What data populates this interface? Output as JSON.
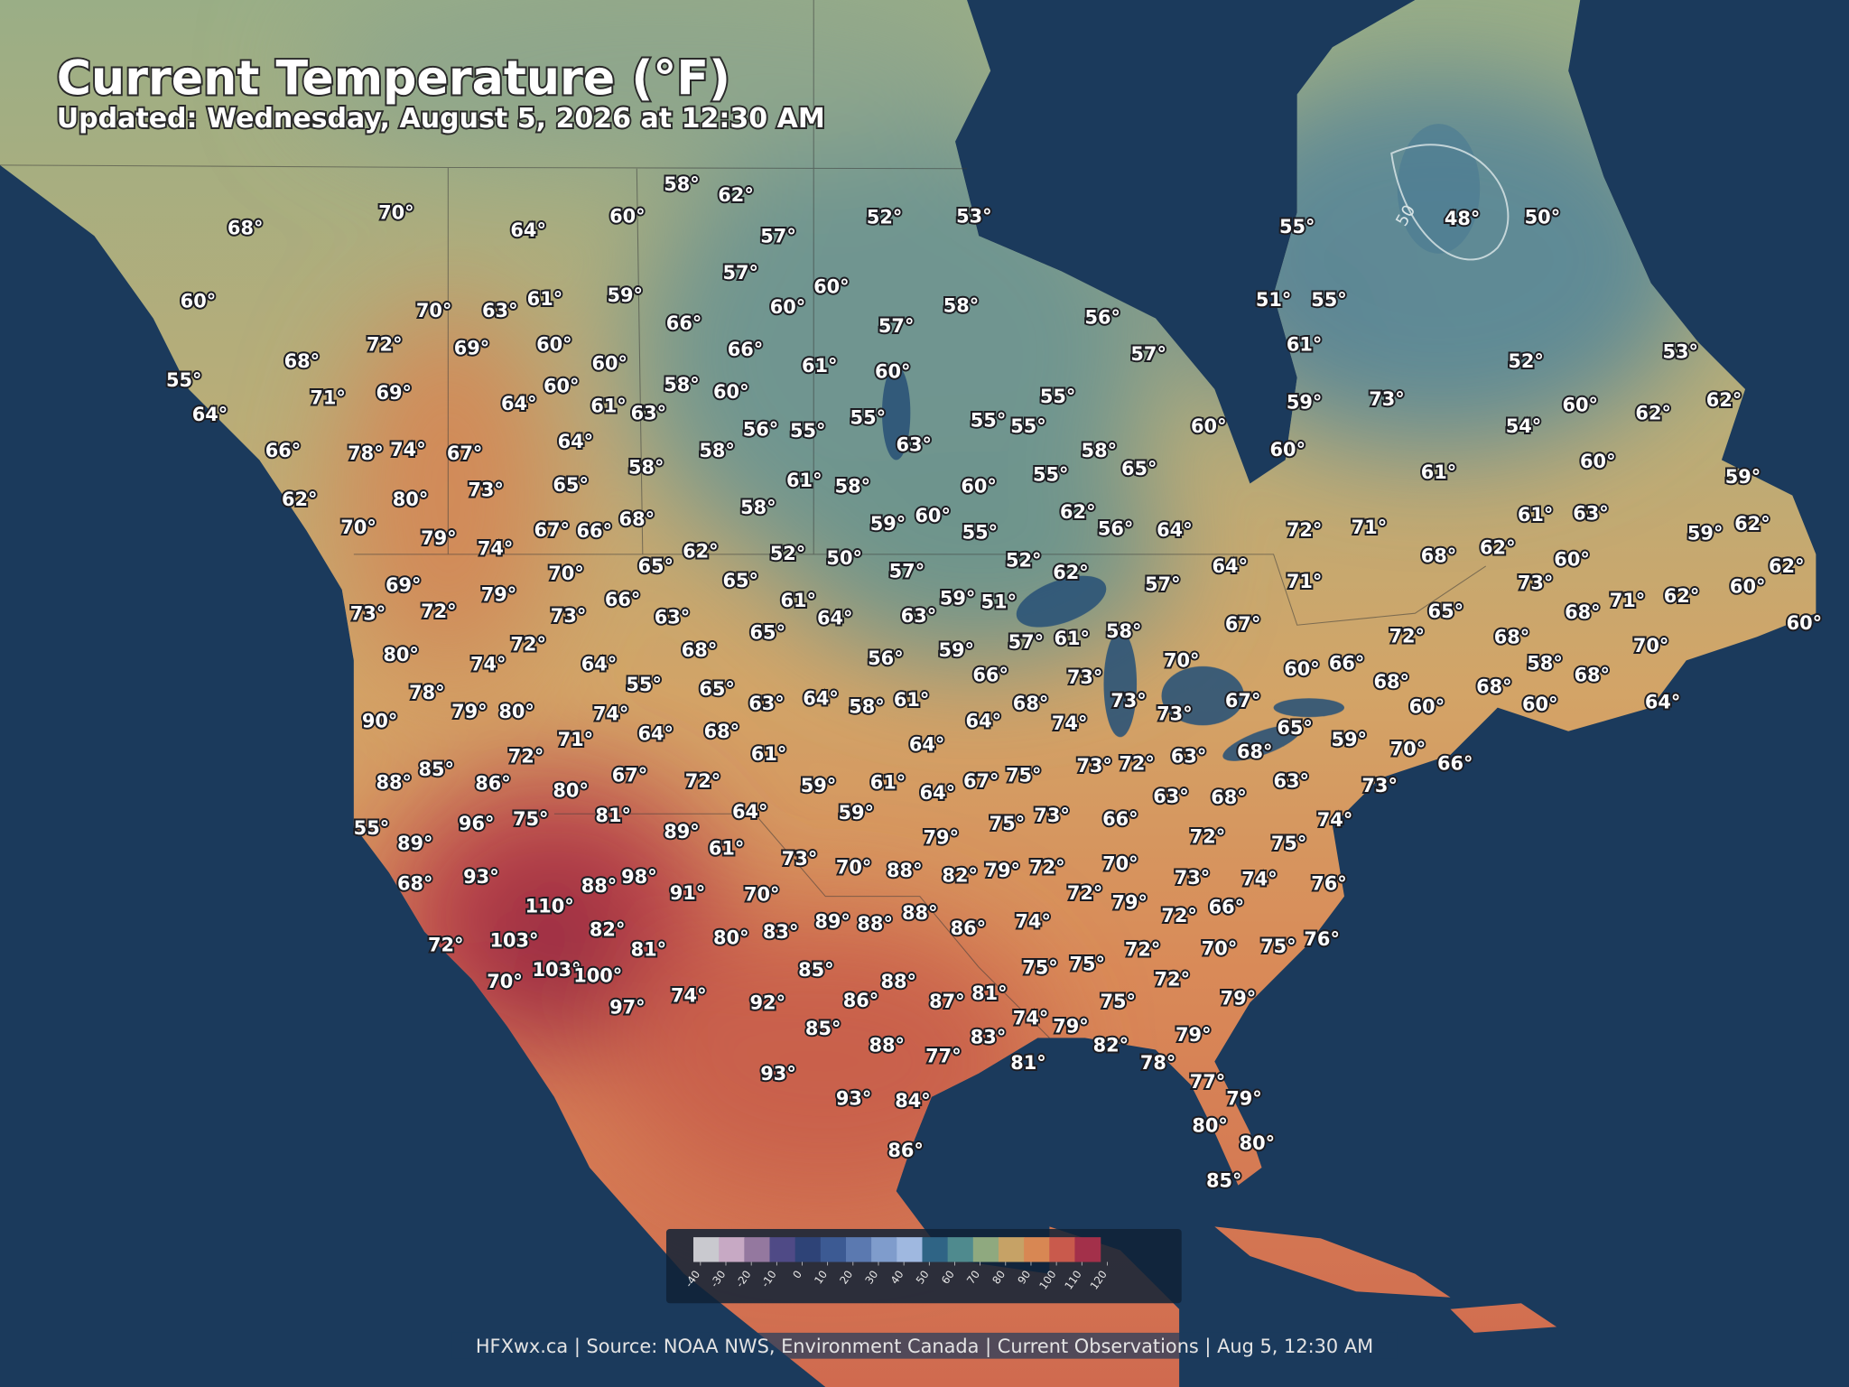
{
  "header": {
    "title": "Current Temperature (°F)",
    "subtitle": "Updated: Wednesday, August 5, 2026 at 12:30 AM"
  },
  "stations": [
    "58°",
    "62°",
    "70°",
    "60°",
    "52°",
    "53°",
    "55°",
    "48°",
    "50°",
    "68°",
    "64°",
    "57°",
    "57°",
    "60°",
    "51°",
    "55°",
    "59°",
    "61°",
    "60°",
    "60°",
    "58°",
    "70°",
    "63°",
    "66°",
    "57°",
    "56°",
    "72°",
    "69°",
    "60°",
    "66°",
    "61°",
    "57°",
    "52°",
    "53°",
    "68°",
    "60°",
    "61°",
    "60°",
    "55°",
    "58°",
    "60°",
    "60°",
    "71°",
    "69°",
    "55°",
    "64°",
    "61°",
    "63°",
    "59°",
    "73°",
    "60°",
    "62°",
    "62°",
    "64°",
    "55°",
    "55°",
    "55°",
    "56°",
    "55°",
    "60°",
    "54°",
    "66°",
    "78°",
    "74°",
    "67°",
    "64°",
    "63°",
    "58°",
    "58°",
    "60°",
    "60°",
    "58°",
    "65°",
    "65°",
    "61°",
    "58°",
    "55°",
    "61°",
    "59°",
    "73°",
    "60°",
    "62°",
    "80°",
    "58°",
    "62°",
    "59°",
    "60°",
    "56°",
    "64°",
    "70°",
    "67°",
    "66°",
    "68°",
    "55°",
    "72°",
    "71°",
    "61°",
    "63°",
    "62°",
    "59°",
    "79°",
    "74°",
    "62°",
    "52°",
    "50°",
    "65°",
    "57°",
    "52°",
    "62°",
    "64°",
    "68°",
    "62°",
    "60°",
    "70°",
    "65°",
    "57°",
    "71°",
    "73°",
    "62°",
    "62°",
    "60°",
    "69°",
    "79°",
    "66°",
    "61°",
    "59°",
    "51°",
    "73°",
    "72°",
    "73°",
    "63°",
    "64°",
    "63°",
    "65°",
    "68°",
    "71°",
    "60°",
    "72°",
    "65°",
    "57°",
    "61°",
    "58°",
    "67°",
    "72°",
    "68°",
    "70°",
    "80°",
    "74°",
    "68°",
    "56°",
    "59°",
    "70°",
    "64°",
    "66°",
    "60°",
    "66°",
    "58°",
    "68°",
    "73°",
    "68°",
    "78°",
    "55°",
    "65°",
    "63°",
    "64°",
    "58°",
    "61°",
    "68°",
    "73°",
    "67°",
    "68°",
    "60°",
    "60°",
    "64°",
    "90°",
    "79°",
    "80°",
    "74°",
    "64°",
    "68°",
    "64°",
    "74°",
    "73°",
    "65°",
    "59°",
    "70°",
    "66°",
    "71°",
    "64°",
    "61°",
    "72°",
    "85°",
    "73°",
    "72°",
    "63°",
    "68°",
    "88°",
    "86°",
    "80°",
    "67°",
    "72°",
    "59°",
    "61°",
    "64°",
    "67°",
    "75°",
    "63°",
    "73°",
    "63°",
    "68°",
    "64°",
    "96°",
    "75°",
    "81°",
    "59°",
    "75°",
    "73°",
    "66°",
    "74°",
    "55°",
    "89°",
    "89°",
    "61°",
    "72°",
    "75°",
    "79°",
    "73°",
    "70°",
    "88°",
    "82°",
    "79°",
    "72°",
    "70°",
    "68°",
    "93°",
    "88°",
    "98°",
    "91°",
    "70°",
    "73°",
    "74°",
    "76°",
    "72°",
    "79°",
    "110°",
    "89°",
    "88°",
    "88°",
    "86°",
    "74°",
    "72°",
    "66°",
    "82°",
    "80°",
    "83°",
    "72°",
    "103°",
    "81°",
    "72°",
    "70°",
    "75°",
    "76°",
    "85°",
    "75°",
    "75°",
    "72°",
    "70°",
    "103°",
    "100°",
    "88°",
    "81°",
    "79°",
    "74°",
    "92°",
    "86°",
    "87°",
    "75°",
    "97°",
    "74°",
    "79°",
    "85°",
    "83°",
    "82°",
    "79°",
    "88°",
    "77°",
    "78°",
    "81°",
    "93°",
    "77°",
    "79°",
    "93°",
    "84°",
    "80°",
    "80°",
    "86°",
    "85°"
  ],
  "contour_labels": [
    "50"
  ],
  "legend": {
    "ticks": [
      -40,
      -30,
      -20,
      -10,
      0,
      10,
      20,
      30,
      40,
      50,
      60,
      70,
      80,
      90,
      100,
      110,
      120
    ],
    "colors": [
      "#c9c9cf",
      "#c7a9c4",
      "#94789f",
      "#4f4a86",
      "#2e4377",
      "#3c5a93",
      "#5b79b0",
      "#7f9ccc",
      "#9fb8e0",
      "#2f6485",
      "#4f8a8e",
      "#8fa97f",
      "#c6a266",
      "#d88753",
      "#c95a4c",
      "#a3304a",
      "#5c0f25"
    ]
  },
  "footer": "HFXwx.ca | Source: NOAA NWS, Environment Canada | Current Observations | Aug 5, 12:30 AM"
}
